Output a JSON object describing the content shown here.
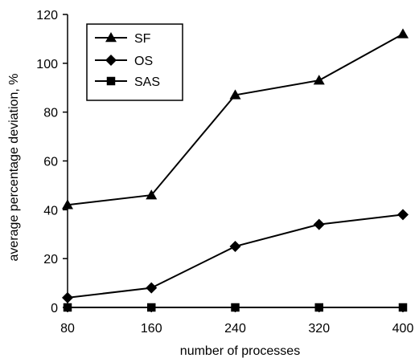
{
  "chart_data": {
    "type": "line",
    "title": "",
    "xlabel": "number of processes",
    "ylabel": "average percentage deviation, %",
    "x": [
      80,
      160,
      240,
      320,
      400
    ],
    "xlim": [
      80,
      400
    ],
    "ylim": [
      0,
      120
    ],
    "xticks": [
      "80",
      "160",
      "240",
      "320",
      "400"
    ],
    "yticks": [
      "0",
      "20",
      "40",
      "60",
      "80",
      "100",
      "120"
    ],
    "grid": false,
    "legend_position": "top-left",
    "series": [
      {
        "name": "SF",
        "marker": "triangle",
        "values": [
          42,
          46,
          87,
          93,
          112
        ]
      },
      {
        "name": "OS",
        "marker": "diamond",
        "values": [
          4,
          8,
          25,
          34,
          38
        ]
      },
      {
        "name": "SAS",
        "marker": "square",
        "values": [
          0,
          0,
          0,
          0,
          0
        ]
      }
    ],
    "colors": {
      "line": "#000000",
      "marker": "#000000"
    }
  }
}
